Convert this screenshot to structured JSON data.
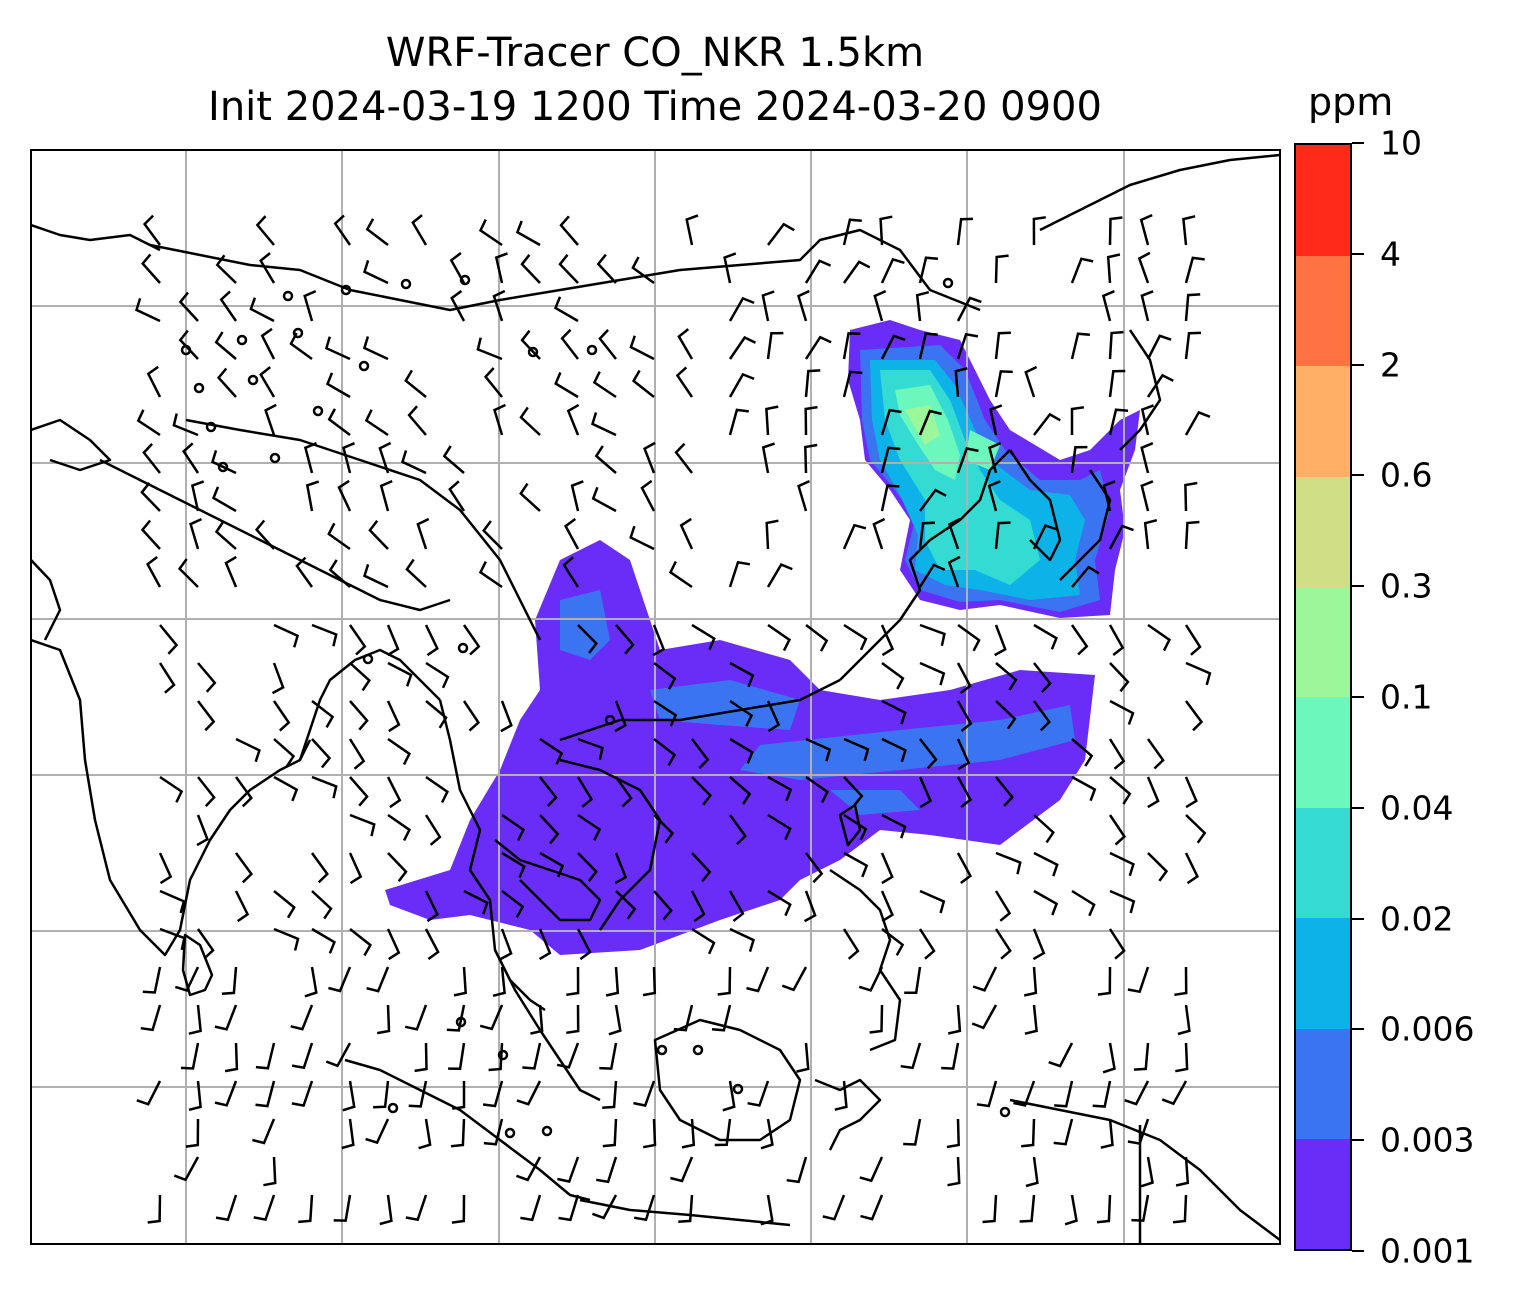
{
  "title": {
    "line1": "WRF-Tracer CO_NKR 1.5km",
    "line2": "Init 2024-03-19 1200 Time 2024-03-20 0900"
  },
  "colorbar": {
    "unit": "ppm",
    "levels": [
      "0.001",
      "0.003",
      "0.006",
      "0.02",
      "0.04",
      "0.1",
      "0.3",
      "0.6",
      "2",
      "4",
      "10"
    ],
    "colors": [
      "#6a2cf7",
      "#3b74f0",
      "#0cb2e8",
      "#34dbd2",
      "#6cf7bc",
      "#9cf79a",
      "#d0df86",
      "#ffb066",
      "#ff7242",
      "#ff2a1a"
    ]
  },
  "map": {
    "grid_color": "#b0b0b0",
    "coast_color": "#000000",
    "plume_colors": {
      "low": "#6a2cf7",
      "mid": "#3b74f0",
      "mid2": "#0cb2e8",
      "high": "#34dbd2",
      "peak": "#6cf7bc",
      "top": "#9cf79a"
    }
  }
}
